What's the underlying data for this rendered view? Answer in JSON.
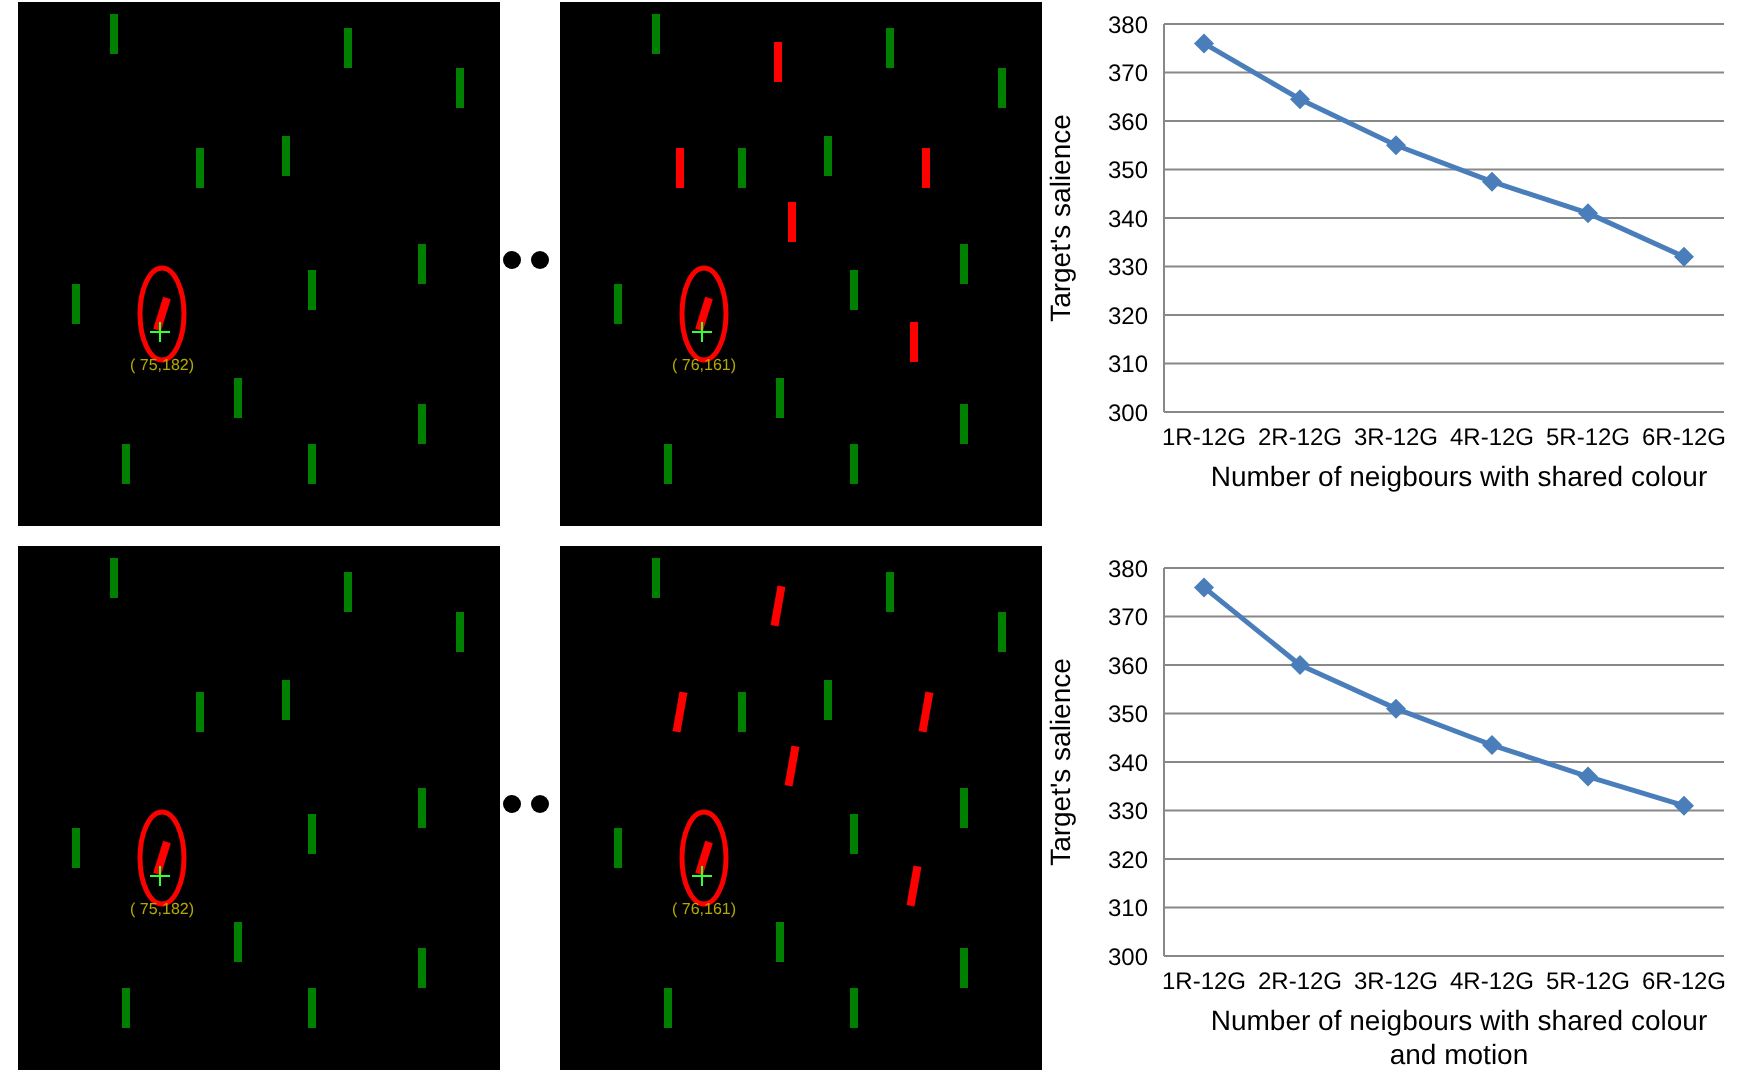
{
  "chart_data": [
    {
      "type": "line",
      "categories": [
        "1R-12G",
        "2R-12G",
        "3R-12G",
        "4R-12G",
        "5R-12G",
        "6R-12G"
      ],
      "series": [
        {
          "color": "#4a7ebb",
          "values": [
            376,
            364.5,
            355,
            347.5,
            341,
            332
          ]
        }
      ],
      "ylabel": "Target's salience",
      "xlabel": "Number of neigbours with shared colour",
      "ylim": [
        300,
        380
      ],
      "yticks": [
        300,
        310,
        320,
        330,
        340,
        350,
        360,
        370,
        380
      ],
      "grid": "y",
      "marker": "diamond",
      "legend": false,
      "annotations": [
        "( 75,182)",
        "( 76,161)"
      ]
    },
    {
      "type": "line",
      "categories": [
        "1R-12G",
        "2R-12G",
        "3R-12G",
        "4R-12G",
        "5R-12G",
        "6R-12G"
      ],
      "series": [
        {
          "color": "#4a7ebb",
          "values": [
            376,
            360,
            351,
            343.5,
            337,
            331
          ]
        }
      ],
      "ylabel": "Target's salience",
      "xlabel": "Number of neigbours with shared colour and motion",
      "ylim": [
        300,
        380
      ],
      "yticks": [
        300,
        310,
        320,
        330,
        340,
        350,
        360,
        370,
        380
      ],
      "grid": "y",
      "marker": "diamond",
      "legend": false,
      "annotations": [
        "( 75,182)",
        "( 76,161)"
      ]
    }
  ]
}
